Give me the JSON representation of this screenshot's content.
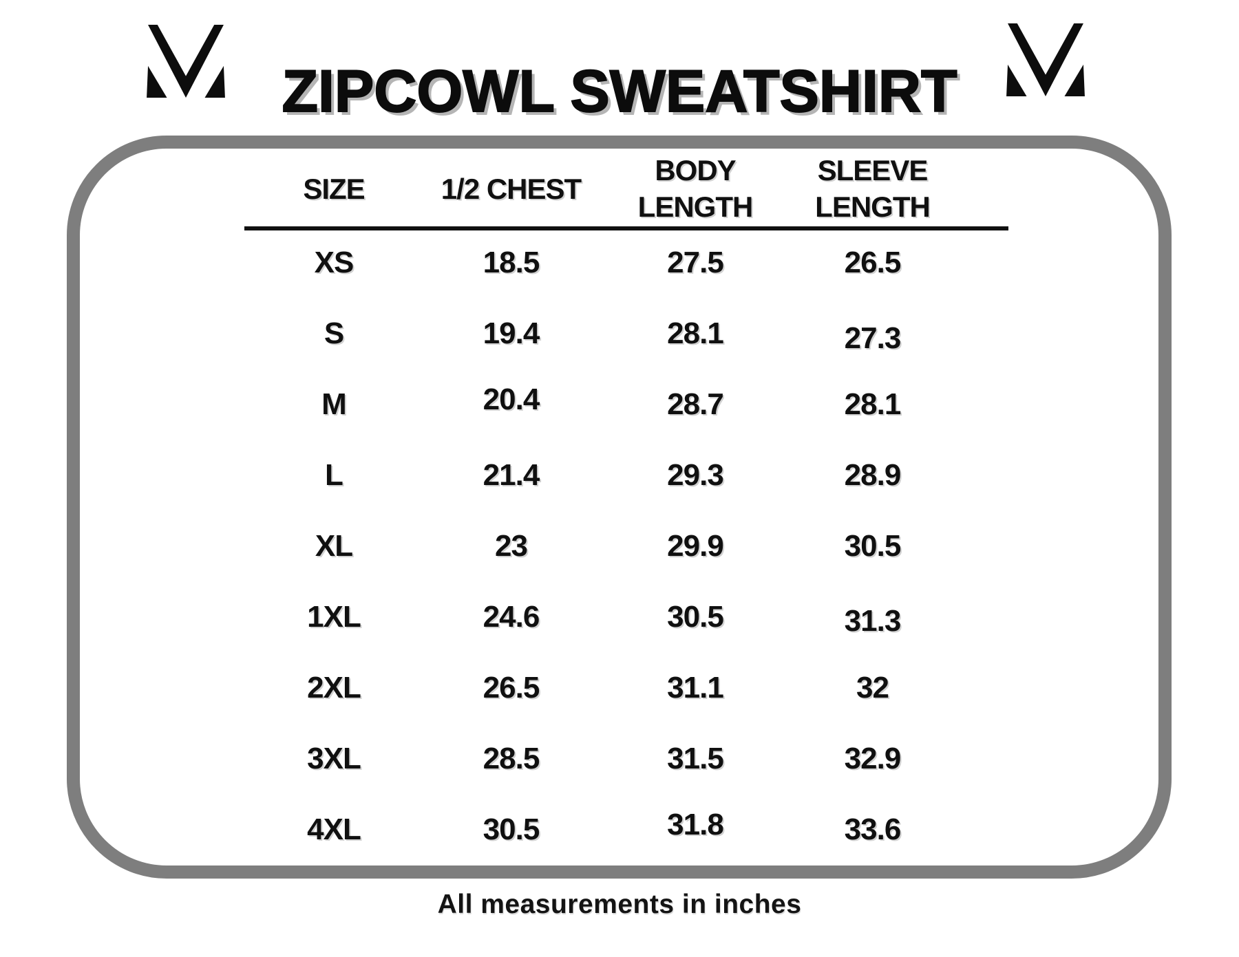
{
  "page": {
    "title": "ZIPCOWL SWEATSHIRT",
    "footer_note": "All measurements in inches"
  },
  "icons": {
    "brand_logo": "m-checkmark-logo"
  },
  "colors": {
    "text": "#101010",
    "frame_border": "#7e7e7e",
    "title_shadow": "#b5b5b5",
    "background": "#ffffff"
  },
  "chart_data": {
    "type": "table",
    "title": "ZIPCOWL SWEATSHIRT",
    "unit": "inches",
    "note": "All measurements in inches",
    "columns": [
      {
        "id": "size",
        "label": "SIZE",
        "lines": [
          "SIZE"
        ]
      },
      {
        "id": "half_chest",
        "label": "1/2 CHEST",
        "lines": [
          "1/2 CHEST"
        ]
      },
      {
        "id": "body_length",
        "label": "BODY LENGTH",
        "lines": [
          "BODY",
          "LENGTH"
        ]
      },
      {
        "id": "sleeve_length",
        "label": "SLEEVE LENGTH",
        "lines": [
          "SLEEVE",
          "LENGTH"
        ]
      }
    ],
    "rows": [
      {
        "cells": [
          "XS",
          "18.5",
          "27.5",
          "26.5"
        ]
      },
      {
        "cells": [
          "S",
          "19.4",
          "28.1",
          "27.3"
        ]
      },
      {
        "cells": [
          "M",
          "20.4",
          "28.7",
          "28.1"
        ]
      },
      {
        "cells": [
          "L",
          "21.4",
          "29.3",
          "28.9"
        ]
      },
      {
        "cells": [
          "XL",
          "23",
          "29.9",
          "30.5"
        ]
      },
      {
        "cells": [
          "1XL",
          "24.6",
          "30.5",
          "31.3"
        ]
      },
      {
        "cells": [
          "2XL",
          "26.5",
          "31.1",
          "32"
        ]
      },
      {
        "cells": [
          "3XL",
          "28.5",
          "31.5",
          "32.9"
        ]
      },
      {
        "cells": [
          "4XL",
          "30.5",
          "31.8",
          "33.6"
        ]
      }
    ]
  }
}
